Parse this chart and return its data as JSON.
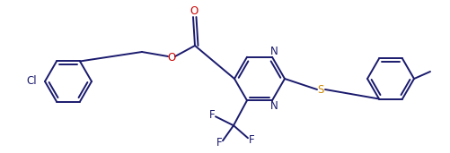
{
  "bg_color": "#ffffff",
  "line_color": "#1a1a6e",
  "atom_colors": {
    "O": "#cc0000",
    "N": "#1a1a6e",
    "S": "#cc8800",
    "Cl": "#1a1a6e",
    "F": "#1a1a6e",
    "C": "#1a1a6e"
  },
  "figsize": [
    5.01,
    1.71
  ],
  "dpi": 100
}
